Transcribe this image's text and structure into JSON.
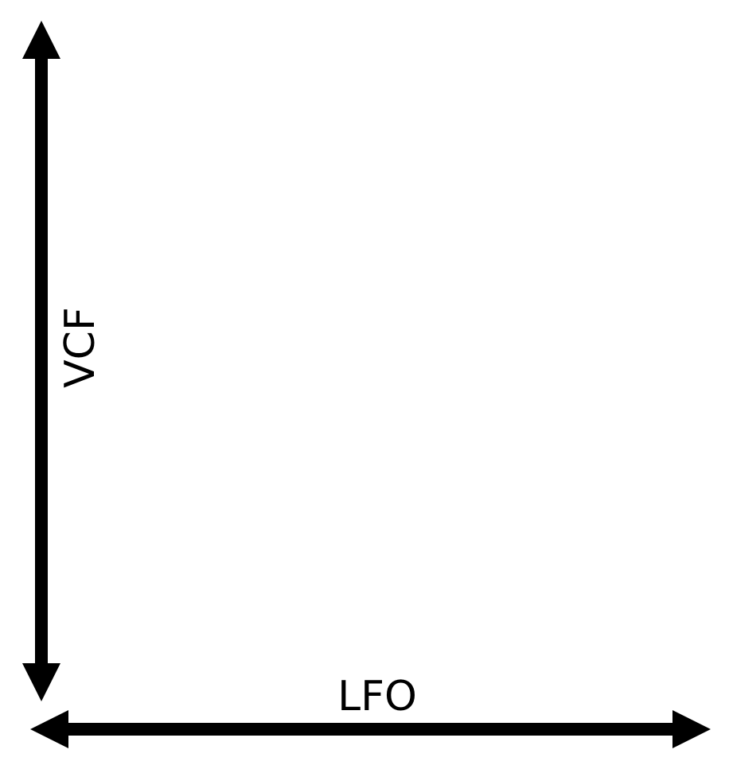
{
  "diagram": {
    "vertical_axis": {
      "label": "VCF",
      "arrowheads": "both-ends"
    },
    "horizontal_axis": {
      "label": "LFO",
      "arrowheads": "both-ends"
    },
    "colors": {
      "line": "#000000",
      "background": "#ffffff"
    }
  }
}
